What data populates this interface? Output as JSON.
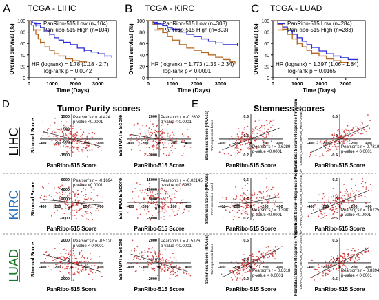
{
  "survival": [
    {
      "letter": "A",
      "title": "TCGA - LIHC",
      "legend": [
        "PanRibo-515 Low  (n=104)",
        "PanRibo-515 High (n=104)"
      ],
      "hr": "HR (logrank) = 1.78 (1.18 - 2.7)",
      "pval": "log-rank p = 0.0042",
      "ylabel": "Overall survival (%)",
      "xlabel": "Time (Days)",
      "xticks": [
        "0",
        "1000",
        "2000",
        "3000"
      ],
      "yticks": [
        "0",
        "20",
        "40",
        "60",
        "80",
        "100"
      ],
      "xmax": 3800,
      "low": [
        [
          0,
          100
        ],
        [
          150,
          96
        ],
        [
          300,
          92
        ],
        [
          500,
          88
        ],
        [
          700,
          82
        ],
        [
          900,
          76
        ],
        [
          1100,
          70
        ],
        [
          1300,
          66
        ],
        [
          1500,
          62
        ],
        [
          1800,
          58
        ],
        [
          2100,
          52
        ],
        [
          2400,
          48
        ],
        [
          2700,
          45
        ],
        [
          3000,
          42
        ],
        [
          3300,
          38
        ],
        [
          3600,
          35
        ]
      ],
      "high": [
        [
          0,
          100
        ],
        [
          100,
          92
        ],
        [
          200,
          84
        ],
        [
          300,
          76
        ],
        [
          400,
          68
        ],
        [
          500,
          62
        ],
        [
          700,
          54
        ],
        [
          900,
          48
        ],
        [
          1100,
          42
        ],
        [
          1300,
          38
        ],
        [
          1600,
          33
        ],
        [
          1900,
          30
        ],
        [
          2200,
          28
        ],
        [
          2500,
          26
        ]
      ]
    },
    {
      "letter": "B",
      "title": "TCGA - KIRC",
      "legend": [
        "PanRibo-515 Low  (n=303)",
        "PanRibo-515 High (n=303)"
      ],
      "hr": "HR (logrank) = 1.773 (1.35 - 2.34)",
      "pval": "log-rank p < 0.0001",
      "ylabel": "Overall survival (%)",
      "xlabel": "Time (Days)",
      "xticks": [
        "0",
        "1000",
        "2000",
        "3000"
      ],
      "yticks": [
        "0",
        "20",
        "40",
        "60",
        "80",
        "100"
      ],
      "xmax": 3800,
      "low": [
        [
          0,
          100
        ],
        [
          200,
          97
        ],
        [
          400,
          94
        ],
        [
          600,
          91
        ],
        [
          800,
          88
        ],
        [
          1000,
          85
        ],
        [
          1300,
          80
        ],
        [
          1600,
          76
        ],
        [
          1900,
          72
        ],
        [
          2200,
          68
        ],
        [
          2500,
          64
        ],
        [
          2800,
          61
        ],
        [
          3100,
          58
        ],
        [
          3400,
          58
        ],
        [
          3700,
          58
        ]
      ],
      "high": [
        [
          0,
          100
        ],
        [
          200,
          93
        ],
        [
          400,
          86
        ],
        [
          600,
          79
        ],
        [
          800,
          72
        ],
        [
          1000,
          66
        ],
        [
          1300,
          58
        ],
        [
          1600,
          52
        ],
        [
          1900,
          48
        ],
        [
          2200,
          44
        ],
        [
          2500,
          40
        ],
        [
          2800,
          36
        ],
        [
          3100,
          32
        ],
        [
          3400,
          28
        ],
        [
          3600,
          26
        ]
      ]
    },
    {
      "letter": "C",
      "title": "TCGA - LUAD",
      "legend": [
        "PanRibo-515 Low  (n=284)",
        "PanRibo-515 High (n=283)"
      ],
      "hr": "HR (logrank) = 1.397 (1.06 - 1.84)",
      "pval": "log-rank p = 0.0165",
      "ylabel": "Overall survival (%)",
      "xlabel": "Time (Days)",
      "xticks": [
        "0",
        "1000",
        "2000",
        "3000"
      ],
      "yticks": [
        "0",
        "20",
        "40",
        "60",
        "80",
        "100"
      ],
      "xmax": 3800,
      "low": [
        [
          0,
          100
        ],
        [
          200,
          95
        ],
        [
          400,
          89
        ],
        [
          600,
          83
        ],
        [
          800,
          76
        ],
        [
          1000,
          70
        ],
        [
          1200,
          64
        ],
        [
          1400,
          58
        ],
        [
          1600,
          53
        ],
        [
          1900,
          47
        ],
        [
          2200,
          42
        ],
        [
          2500,
          38
        ],
        [
          2800,
          35
        ],
        [
          3100,
          32
        ],
        [
          3500,
          28
        ]
      ],
      "high": [
        [
          0,
          100
        ],
        [
          200,
          93
        ],
        [
          400,
          85
        ],
        [
          600,
          76
        ],
        [
          800,
          68
        ],
        [
          1000,
          60
        ],
        [
          1200,
          54
        ],
        [
          1400,
          48
        ],
        [
          1600,
          43
        ],
        [
          1900,
          38
        ],
        [
          2200,
          33
        ],
        [
          2500,
          30
        ],
        [
          2800,
          27
        ],
        [
          3100,
          25
        ]
      ]
    }
  ],
  "sectionD": {
    "letter": "D",
    "title": "Tumor Purity scores"
  },
  "sectionE": {
    "letter": "E",
    "title": "Stemness scores"
  },
  "rows": [
    {
      "label": "LIHC",
      "color": "#000000"
    },
    {
      "label": "KIRC",
      "color": "#1f6fc0"
    },
    {
      "label": "LUAD",
      "color": "#1a7a2a"
    }
  ],
  "scatter": [
    {
      "row": 0,
      "col": 0,
      "ylabel": "Stromal Score",
      "ylabel2": "",
      "xlabel": "PanRibo-515 Score",
      "stat1": "Pearson's r = -0.424",
      "stat2": "p-value <0.0001",
      "stat_pos": "top-right",
      "slope": -0.42,
      "xticks": [
        "-400",
        "-200",
        "0",
        "200",
        "400"
      ],
      "yticks": [
        "1500",
        "500",
        "-500",
        "-1500"
      ]
    },
    {
      "row": 0,
      "col": 1,
      "ylabel": "ESTIMATE Score",
      "ylabel2": "",
      "xlabel": "PanRibo-515 Score",
      "stat1": "Pearson's r = -0.2602",
      "stat2": "p-value < 0.0001",
      "stat_pos": "top-right",
      "slope": -0.26,
      "xticks": [
        "-400",
        "-200",
        "0",
        "200",
        "400"
      ],
      "yticks": [
        "2000",
        "0",
        "-2000"
      ]
    },
    {
      "row": 0,
      "col": 2,
      "ylabel": "Stemness Score (RNAss)",
      "ylabel2": "RNA expression-based",
      "xlabel": "PanRibo-515 Score",
      "stat1": "Pearson's r = 0.6289",
      "stat2": "p-value <0.0001",
      "stat_pos": "bottom-right",
      "slope": 0.63,
      "xticks": [
        "-400",
        "-200",
        "0",
        "200",
        "400"
      ],
      "yticks": [
        "0.6",
        "0.4",
        "0.2"
      ]
    },
    {
      "row": 0,
      "col": 3,
      "ylabel": "Fibroblast Serum-Response Program",
      "ylabel2": "CHANG_CORE_SERUM_RESPONSE_UP",
      "xlabel": "PanRibo-515 Score",
      "stat1": "Pearson's r = 0.7819",
      "stat2": "p-value < 0.0001",
      "stat_pos": "bottom-right",
      "slope": 0.78,
      "xticks": [
        "-400",
        "-200",
        "0",
        "200",
        "400"
      ],
      "yticks": [
        "0.5",
        "0",
        "-0.5"
      ]
    },
    {
      "row": 1,
      "col": 0,
      "ylabel": "Stromal Score",
      "ylabel2": "",
      "xlabel": "PanRibo-515 Score",
      "stat1": "Pearson's r = -0.1694",
      "stat2": "p-value <0.0001",
      "stat_pos": "top-right",
      "slope": -0.17,
      "xticks": [
        "-400",
        "-200",
        "0",
        "200",
        "400"
      ],
      "yticks": [
        "6000",
        "4000",
        "2000",
        "0",
        "-2000"
      ]
    },
    {
      "row": 1,
      "col": 1,
      "ylabel": "ESTIMATE Score",
      "ylabel2": "",
      "xlabel": "PanRibo-515 Score",
      "stat1": "Pearson's r = -0.02145",
      "stat2": "p-value = 0.5982",
      "stat_pos": "top-right",
      "slope": -0.02,
      "xticks": [
        "-400",
        "-200",
        "0",
        "200",
        "400"
      ],
      "yticks": [
        "15000",
        "10000",
        "5000",
        "0",
        "-5000"
      ]
    },
    {
      "row": 1,
      "col": 2,
      "ylabel": "Stemness Score (RNAss)",
      "ylabel2": "RNA expression-based",
      "xlabel": "PanRibo-515 Score",
      "stat1": "Pearson's r = 0.3081",
      "stat2": "p-value <0.0001",
      "stat_pos": "bottom-right",
      "slope": 0.31,
      "xticks": [
        "-400",
        "-200",
        "0",
        "200",
        "400"
      ],
      "yticks": [
        "0.6",
        "0.4",
        "0.2"
      ]
    },
    {
      "row": 1,
      "col": 3,
      "ylabel": "Fibroblast Serum-Response Program",
      "ylabel2": "CHANG_CORE_SERUM_RESPONSE_UP",
      "xlabel": "PanRibo-515 Score",
      "stat1": "Pearson's r = 0.6725",
      "stat2": "p-value <0.0001",
      "stat_pos": "bottom-right",
      "slope": 0.67,
      "xticks": [
        "-400",
        "-200",
        "0",
        "200",
        "400"
      ],
      "yticks": [
        "0.5",
        "0",
        "-0.5"
      ]
    },
    {
      "row": 2,
      "col": 0,
      "ylabel": "Stromal Score",
      "ylabel2": "",
      "xlabel": "PanRibo-515 Score",
      "stat1": "Pearson's r = -0.5120",
      "stat2": "p-value < 0.0001",
      "stat_pos": "top-right",
      "slope": -0.51,
      "xticks": [
        "-400",
        "-200",
        "0",
        "200",
        "400"
      ],
      "yticks": [
        "2000",
        "0",
        "-2000"
      ]
    },
    {
      "row": 2,
      "col": 1,
      "ylabel": "ESTIMATE Score",
      "ylabel2": "",
      "xlabel": "PanRibo-515 Score",
      "stat1": "Pearson's r = -0.5126",
      "stat2": "p-value < 0.0001",
      "stat_pos": "top-right",
      "slope": -0.51,
      "xticks": [
        "-400",
        "-200",
        "0",
        "200",
        "400"
      ],
      "yticks": [
        "2000",
        "0",
        "-2000"
      ]
    },
    {
      "row": 2,
      "col": 2,
      "ylabel": "Stemness Score (RNAss)",
      "ylabel2": "RNA expression-based",
      "xlabel": "PanRibo-515 Score",
      "stat1": "Pearson's r = 0.8318",
      "stat2": "p-value < 0.0001",
      "stat_pos": "bottom-right",
      "slope": 0.83,
      "xticks": [
        "-400",
        "-200",
        "0",
        "200",
        "400"
      ],
      "yticks": [
        "0.6",
        "0.4",
        "0.2"
      ]
    },
    {
      "row": 2,
      "col": 3,
      "ylabel": "Fibroblast Serum-Response Program",
      "ylabel2": "CHANG_CORE_SERUM_RESPONSE_UP",
      "xlabel": "PanRibo-515 Score",
      "stat1": "Pearson's r = 0.8394",
      "stat2": "p-value < 0.0001",
      "stat_pos": "bottom-right",
      "slope": 0.84,
      "xticks": [
        "-400",
        "-200",
        "0",
        "200",
        "400"
      ],
      "yticks": [
        "0.5",
        "0",
        "-0.5"
      ]
    }
  ],
  "colors": {
    "low": "#2b2bd6",
    "high": "#b5651d",
    "dot": "#c82020",
    "regression": "#333333"
  }
}
